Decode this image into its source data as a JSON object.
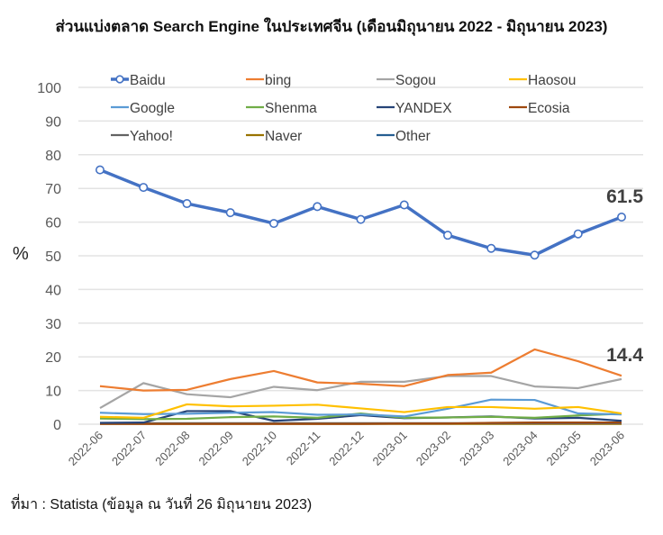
{
  "title": "ส่วนแบ่งตลาด Search Engine ในประเทศจีน (เดือนมิถุนายน 2022 - มิถุนายน 2023)",
  "source": "ที่มา : Statista (ข้อมูล ณ วันที่ 26 มิถุนายน 2023)",
  "chart_data": {
    "type": "line",
    "title": "ส่วนแบ่งตลาด Search Engine ในประเทศจีน (เดือนมิถุนายน 2022 - มิถุนายน 2023)",
    "xlabel": "",
    "ylabel": "%",
    "ylim": [
      0,
      100
    ],
    "yticks": [
      0,
      10,
      20,
      30,
      40,
      50,
      60,
      70,
      80,
      90,
      100
    ],
    "grid": true,
    "legend_position": "top",
    "categories": [
      "2022-06",
      "2022-07",
      "2022-08",
      "2022-09",
      "2022-10",
      "2022-11",
      "2022-12",
      "2023-01",
      "2023-02",
      "2023-03",
      "2023-04",
      "2023-05",
      "2023-06"
    ],
    "series": [
      {
        "name": "Baidu",
        "color": "#4472C4",
        "marker": "circle",
        "values": [
          75.5,
          70.3,
          65.5,
          62.8,
          59.6,
          64.6,
          60.8,
          65.1,
          56.1,
          52.2,
          50.2,
          56.5,
          61.5
        ]
      },
      {
        "name": "bing",
        "color": "#ED7D31",
        "values": [
          11.3,
          10.0,
          10.2,
          13.4,
          15.8,
          12.4,
          12.0,
          11.3,
          14.6,
          15.3,
          22.2,
          18.7,
          14.4
        ]
      },
      {
        "name": "Sogou",
        "color": "#A5A5A5",
        "values": [
          4.8,
          12.2,
          8.9,
          8.0,
          11.1,
          10.1,
          12.6,
          12.6,
          14.3,
          14.3,
          11.2,
          10.7,
          13.4
        ]
      },
      {
        "name": "Haosou",
        "color": "#FFC000",
        "values": [
          2.2,
          1.9,
          5.9,
          5.3,
          5.5,
          5.8,
          4.7,
          3.6,
          5.1,
          5.1,
          4.6,
          5.1,
          3.2
        ]
      },
      {
        "name": "Google",
        "color": "#5B9BD5",
        "values": [
          3.4,
          3.0,
          3.1,
          3.4,
          3.6,
          2.8,
          2.9,
          2.3,
          4.6,
          7.3,
          7.2,
          3.2,
          2.9
        ]
      },
      {
        "name": "Shenma",
        "color": "#70AD47",
        "values": [
          1.7,
          1.5,
          1.6,
          2.1,
          2.3,
          1.9,
          3.2,
          1.9,
          2.0,
          2.2,
          1.9,
          2.6,
          3.1
        ]
      },
      {
        "name": "YANDEX",
        "color": "#264478",
        "values": [
          0.4,
          0.5,
          3.9,
          3.9,
          1.0,
          1.6,
          2.7,
          1.8,
          2.0,
          2.3,
          1.7,
          1.9,
          1.0
        ]
      },
      {
        "name": "Ecosia",
        "color": "#9E480E",
        "values": [
          0.1,
          0.1,
          0.1,
          0.1,
          0.1,
          0.1,
          0.1,
          0.2,
          0.2,
          0.4,
          0.5,
          0.5,
          0.5
        ]
      },
      {
        "name": "Yahoo!",
        "color": "#636363",
        "values": [
          0.3,
          0.3,
          0.3,
          0.3,
          0.3,
          0.3,
          0.3,
          0.3,
          0.3,
          0.3,
          0.3,
          0.3,
          0.3
        ]
      },
      {
        "name": "Naver",
        "color": "#997300",
        "values": [
          0.1,
          0.1,
          0.1,
          0.1,
          0.1,
          0.1,
          0.1,
          0.1,
          0.1,
          0.1,
          0.1,
          0.1,
          0.1
        ]
      },
      {
        "name": "Other",
        "color": "#255E91",
        "values": [
          0.2,
          0.2,
          0.2,
          0.2,
          0.2,
          0.2,
          0.2,
          0.2,
          0.2,
          0.2,
          0.2,
          0.2,
          0.2
        ]
      }
    ],
    "annotations": [
      {
        "series": "Baidu",
        "category": "2023-06",
        "text": "61.5"
      },
      {
        "series": "bing",
        "category": "2023-06",
        "text": "14.4"
      }
    ]
  }
}
